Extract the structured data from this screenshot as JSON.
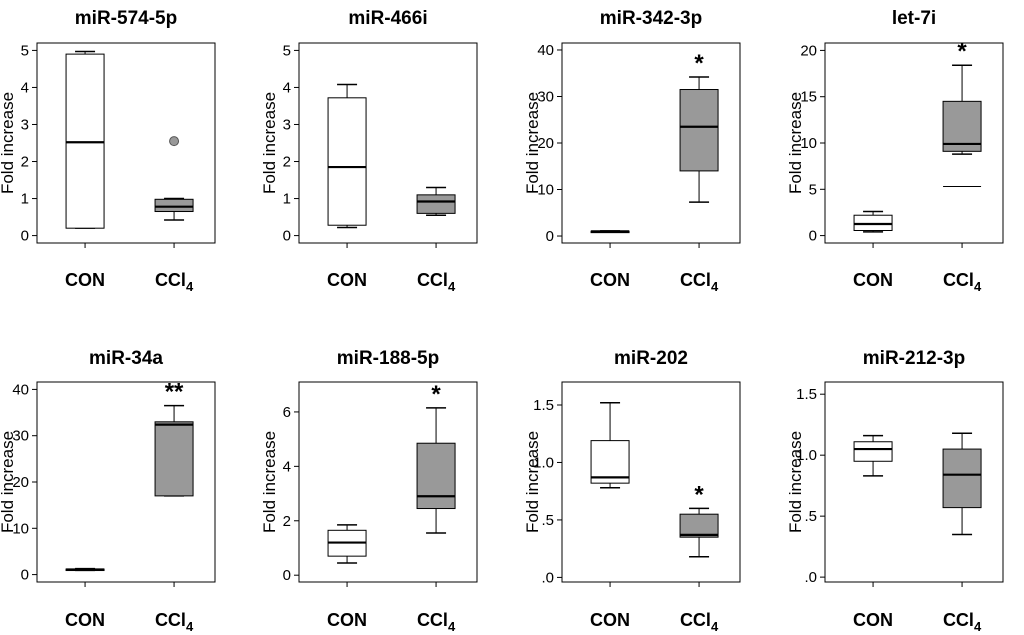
{
  "figure": {
    "ylabel": "Fold increase",
    "group_labels": {
      "con": "CON",
      "ccl4_base": "CCl",
      "ccl4_sub": "4"
    },
    "colors": {
      "con_fill": "#ffffff",
      "ccl4_fill": "#999999",
      "line": "#000000",
      "outlier_fill": "#999999"
    }
  },
  "chart_data": [
    {
      "type": "boxplot",
      "title": "miR-574-5p",
      "ylabel": "Fold increase",
      "ylim": [
        -0.2,
        5.2
      ],
      "yticks": [
        0,
        1,
        2,
        3,
        4,
        5
      ],
      "ytick_labels": [
        "0",
        "1",
        "2",
        "3",
        "4",
        "5"
      ],
      "categories": [
        "CON",
        "CCl4"
      ],
      "boxes": [
        {
          "min": 0.2,
          "q1": 0.2,
          "median": 2.52,
          "q3": 4.9,
          "max": 4.97,
          "outliers": []
        },
        {
          "min": 0.42,
          "q1": 0.65,
          "median": 0.78,
          "q3": 0.98,
          "max": 1.0,
          "outliers": [
            2.55
          ]
        }
      ],
      "significance": [
        "",
        ""
      ]
    },
    {
      "type": "boxplot",
      "title": "miR-466i",
      "ylabel": "Fold increase",
      "ylim": [
        -0.2,
        5.2
      ],
      "yticks": [
        0,
        1,
        2,
        3,
        4,
        5
      ],
      "ytick_labels": [
        "0",
        "1",
        "2",
        "3",
        "4",
        "5"
      ],
      "categories": [
        "CON",
        "CCl4"
      ],
      "boxes": [
        {
          "min": 0.22,
          "q1": 0.28,
          "median": 1.85,
          "q3": 3.72,
          "max": 4.08,
          "outliers": []
        },
        {
          "min": 0.55,
          "q1": 0.6,
          "median": 0.92,
          "q3": 1.1,
          "max": 1.3,
          "outliers": []
        }
      ],
      "significance": [
        "",
        ""
      ]
    },
    {
      "type": "boxplot",
      "title": "miR-342-3p",
      "ylabel": "Fold increase",
      "ylim": [
        -1.5,
        41.5
      ],
      "yticks": [
        0,
        10,
        20,
        30,
        40
      ],
      "ytick_labels": [
        "0",
        "10",
        "20",
        "30",
        "40"
      ],
      "categories": [
        "CON",
        "CCl4"
      ],
      "boxes": [
        {
          "min": 0.9,
          "q1": 0.95,
          "median": 1.0,
          "q3": 1.05,
          "max": 1.1,
          "outliers": []
        },
        {
          "min": 7.3,
          "q1": 14.0,
          "median": 23.5,
          "q3": 31.5,
          "max": 34.2,
          "outliers": []
        }
      ],
      "significance": [
        "",
        "*"
      ]
    },
    {
      "type": "boxplot",
      "title": "let-7i",
      "ylabel": "Fold increase",
      "ylim": [
        -0.8,
        20.8
      ],
      "yticks": [
        0,
        5,
        10,
        15,
        20
      ],
      "ytick_labels": [
        "0",
        "5",
        "10",
        "15",
        "20"
      ],
      "categories": [
        "CON",
        "CCl4"
      ],
      "boxes": [
        {
          "min": 0.4,
          "q1": 0.55,
          "median": 1.25,
          "q3": 2.2,
          "max": 2.6,
          "outliers": []
        },
        {
          "min": 8.8,
          "q1": 9.1,
          "median": 9.9,
          "q3": 14.5,
          "max": 18.4,
          "outliers": [
            5.3
          ]
        }
      ],
      "significance": [
        "",
        "*"
      ]
    },
    {
      "type": "boxplot",
      "title": "miR-34a",
      "ylabel": "Fold increase",
      "ylim": [
        -1.6,
        41.6
      ],
      "yticks": [
        0,
        10,
        20,
        30,
        40
      ],
      "ytick_labels": [
        "0",
        "10",
        "20",
        "30",
        "40"
      ],
      "categories": [
        "CON",
        "CCl4"
      ],
      "boxes": [
        {
          "min": 0.9,
          "q1": 1.0,
          "median": 1.1,
          "q3": 1.2,
          "max": 1.3,
          "outliers": []
        },
        {
          "min": 17.0,
          "q1": 17.0,
          "median": 32.4,
          "q3": 33.0,
          "max": 36.5,
          "outliers": []
        }
      ],
      "significance": [
        "",
        "**"
      ]
    },
    {
      "type": "boxplot",
      "title": "miR-188-5p",
      "ylabel": "Fold increase",
      "ylim": [
        -0.25,
        7.1
      ],
      "yticks": [
        0,
        2,
        4,
        6
      ],
      "ytick_labels": [
        "0",
        "2",
        "4",
        "6"
      ],
      "categories": [
        "CON",
        "CCl4"
      ],
      "boxes": [
        {
          "min": 0.45,
          "q1": 0.7,
          "median": 1.2,
          "q3": 1.65,
          "max": 1.85,
          "outliers": []
        },
        {
          "min": 1.55,
          "q1": 2.45,
          "median": 2.9,
          "q3": 4.85,
          "max": 6.15,
          "outliers": []
        }
      ],
      "significance": [
        "",
        "*"
      ]
    },
    {
      "type": "boxplot",
      "title": "miR-202",
      "ylabel": "Fold increase",
      "ylim": [
        -0.04,
        1.7
      ],
      "yticks": [
        0,
        0.5,
        1.0,
        1.5
      ],
      "ytick_labels": [
        ".0",
        ".5",
        "1.0",
        "1.5"
      ],
      "categories": [
        "CON",
        "CCl4"
      ],
      "boxes": [
        {
          "min": 0.78,
          "q1": 0.82,
          "median": 0.87,
          "q3": 1.19,
          "max": 1.52,
          "outliers": []
        },
        {
          "min": 0.18,
          "q1": 0.35,
          "median": 0.37,
          "q3": 0.55,
          "max": 0.6,
          "outliers": []
        }
      ],
      "significance": [
        "",
        "*"
      ]
    },
    {
      "type": "boxplot",
      "title": "miR-212-3p",
      "ylabel": "Fold increase",
      "ylim": [
        -0.04,
        1.6
      ],
      "yticks": [
        0,
        0.5,
        1.0,
        1.5
      ],
      "ytick_labels": [
        ".0",
        ".5",
        "1.0",
        "1.5"
      ],
      "categories": [
        "CON",
        "CCl4"
      ],
      "boxes": [
        {
          "min": 0.83,
          "q1": 0.95,
          "median": 1.05,
          "q3": 1.11,
          "max": 1.16,
          "outliers": []
        },
        {
          "min": 0.35,
          "q1": 0.57,
          "median": 0.84,
          "q3": 1.05,
          "max": 1.18,
          "outliers": []
        }
      ],
      "significance": [
        "",
        ""
      ]
    }
  ]
}
